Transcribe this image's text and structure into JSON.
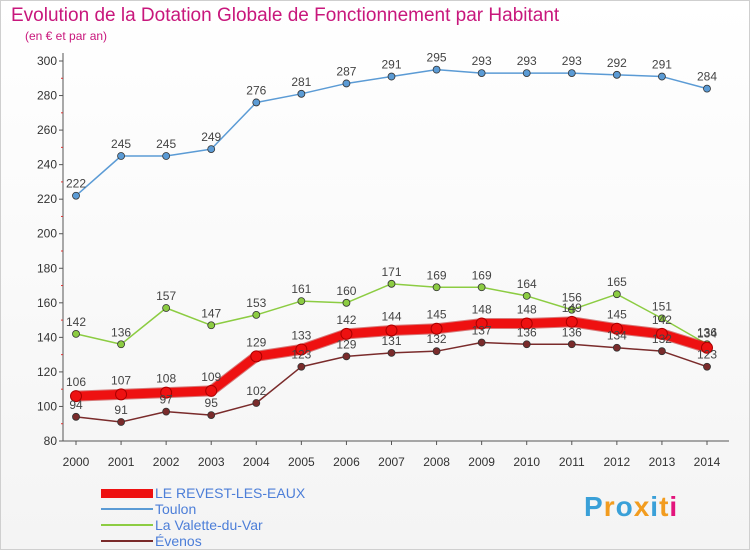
{
  "title": "Evolution de la Dotation Globale de Fonctionnement par Habitant",
  "subtitle": "(en € et par an)",
  "logo": {
    "text": "Proxiti",
    "colors": [
      "#3aa0d8",
      "#f29c1f",
      "#3aa0d8",
      "#f29c1f",
      "#3aa0d8",
      "#f29c1f",
      "#e3157c"
    ]
  },
  "chart_data": {
    "type": "line",
    "x": [
      "2000",
      "2001",
      "2002",
      "2003",
      "2004",
      "2005",
      "2006",
      "2007",
      "2008",
      "2009",
      "2010",
      "2011",
      "2012",
      "2013",
      "2014"
    ],
    "ylim": [
      80,
      300
    ],
    "yticks": [
      80,
      100,
      120,
      140,
      160,
      180,
      200,
      220,
      240,
      260,
      280,
      300
    ],
    "grid": false,
    "legend_position": "bottom-left",
    "series": [
      {
        "name": "LE REVEST-LES-EAUX",
        "color": "#ee1111",
        "values": [
          106,
          107,
          108,
          109,
          129,
          133,
          142,
          144,
          145,
          148,
          148,
          149,
          145,
          142,
          134
        ]
      },
      {
        "name": "Toulon",
        "color": "#5b9bd5",
        "values": [
          222,
          245,
          245,
          249,
          276,
          281,
          287,
          291,
          295,
          293,
          293,
          293,
          292,
          291,
          284
        ]
      },
      {
        "name": "La Valette-du-Var",
        "color": "#8ccc42",
        "values": [
          142,
          136,
          157,
          147,
          153,
          161,
          160,
          171,
          169,
          169,
          164,
          156,
          165,
          151,
          136
        ]
      },
      {
        "name": "Évenos",
        "color": "#7a2b2b",
        "values": [
          94,
          91,
          97,
          95,
          102,
          123,
          129,
          131,
          132,
          137,
          136,
          136,
          134,
          132,
          123
        ]
      }
    ]
  }
}
